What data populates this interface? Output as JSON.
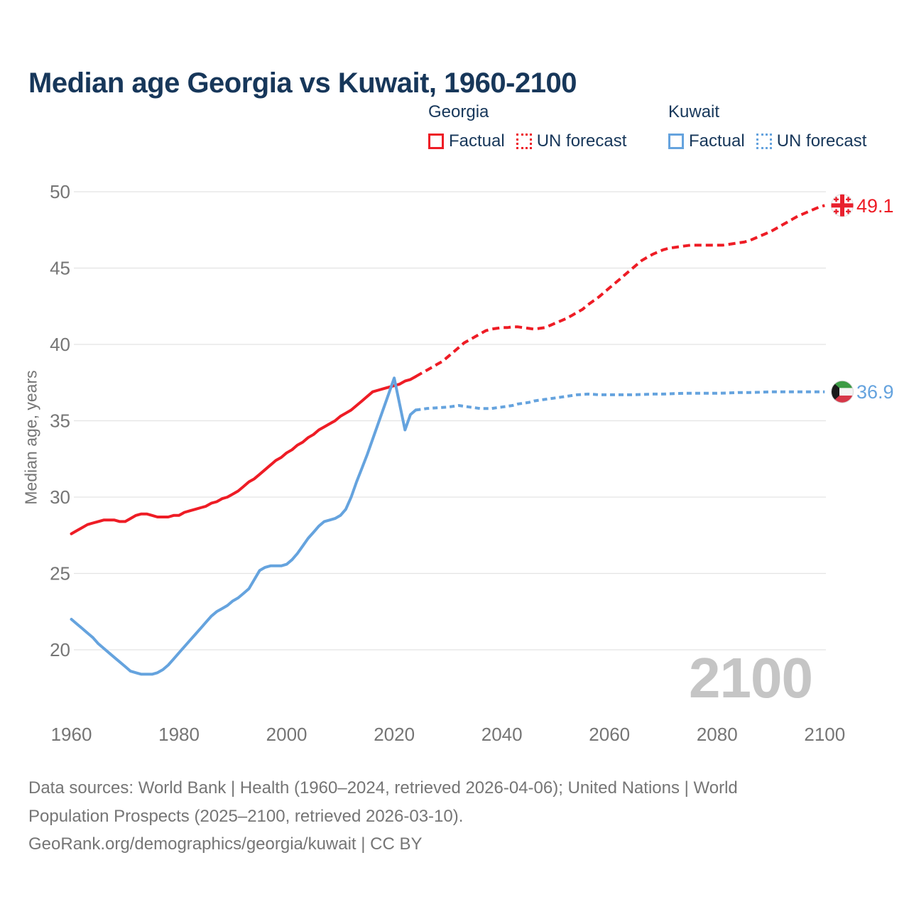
{
  "title": "Median age Georgia vs Kuwait, 1960-2100",
  "y_axis_title": "Median age, years",
  "watermark": "2100",
  "legend": {
    "groups": [
      {
        "name": "Georgia",
        "items": [
          {
            "label": "Factual",
            "style": "solid"
          },
          {
            "label": "UN forecast",
            "style": "dotted"
          }
        ]
      },
      {
        "name": "Kuwait",
        "items": [
          {
            "label": "Factual",
            "style": "solid"
          },
          {
            "label": "UN forecast",
            "style": "dotted"
          }
        ]
      }
    ]
  },
  "end_labels": {
    "georgia": "49.1",
    "kuwait": "36.9"
  },
  "footer": {
    "lines": [
      "Data sources: World Bank | Health (1960–2024, retrieved 2026-04-06); United Nations | World",
      "Population Prospects (2025–2100, retrieved 2026-03-10).",
      "GeoRank.org/demographics/georgia/kuwait | CC BY"
    ]
  },
  "colors": {
    "georgia": "#ee1c25",
    "kuwait": "#65a3de",
    "title_text": "#17375a",
    "axis_text": "#757575",
    "grid": "#e3e3e3",
    "watermark": "#c5c5c5",
    "footer_text": "#757575",
    "flag_georgia_red": "#e8212e",
    "flag_kuwait_green": "#3d9b45",
    "flag_kuwait_red": "#d63748",
    "flag_kuwait_black": "#1a1a1a"
  },
  "chart_data": {
    "type": "line",
    "title": "Median age Georgia vs Kuwait, 1960-2100",
    "xlabel": "",
    "ylabel": "Median age, years",
    "xlim": [
      1960,
      2100
    ],
    "ylim": [
      20,
      50
    ],
    "x_ticks": [
      1960,
      1980,
      2000,
      2020,
      2040,
      2060,
      2080,
      2100
    ],
    "y_ticks": [
      20,
      25,
      30,
      35,
      40,
      45,
      50
    ],
    "grid": "horizontal",
    "legend_position": "top",
    "series": [
      {
        "name": "Georgia Factual",
        "country": "Georgia",
        "style": "solid",
        "color": "#ee1c25",
        "points": [
          [
            1960,
            27.6
          ],
          [
            1961,
            27.8
          ],
          [
            1962,
            28.0
          ],
          [
            1963,
            28.2
          ],
          [
            1964,
            28.3
          ],
          [
            1965,
            28.4
          ],
          [
            1966,
            28.5
          ],
          [
            1967,
            28.5
          ],
          [
            1968,
            28.5
          ],
          [
            1969,
            28.4
          ],
          [
            1970,
            28.4
          ],
          [
            1971,
            28.6
          ],
          [
            1972,
            28.8
          ],
          [
            1973,
            28.9
          ],
          [
            1974,
            28.9
          ],
          [
            1975,
            28.8
          ],
          [
            1976,
            28.7
          ],
          [
            1977,
            28.7
          ],
          [
            1978,
            28.7
          ],
          [
            1979,
            28.8
          ],
          [
            1980,
            28.8
          ],
          [
            1981,
            29.0
          ],
          [
            1982,
            29.1
          ],
          [
            1983,
            29.2
          ],
          [
            1984,
            29.3
          ],
          [
            1985,
            29.4
          ],
          [
            1986,
            29.6
          ],
          [
            1987,
            29.7
          ],
          [
            1988,
            29.9
          ],
          [
            1989,
            30.0
          ],
          [
            1990,
            30.2
          ],
          [
            1991,
            30.4
          ],
          [
            1992,
            30.7
          ],
          [
            1993,
            31.0
          ],
          [
            1994,
            31.2
          ],
          [
            1995,
            31.5
          ],
          [
            1996,
            31.8
          ],
          [
            1997,
            32.1
          ],
          [
            1998,
            32.4
          ],
          [
            1999,
            32.6
          ],
          [
            2000,
            32.9
          ],
          [
            2001,
            33.1
          ],
          [
            2002,
            33.4
          ],
          [
            2003,
            33.6
          ],
          [
            2004,
            33.9
          ],
          [
            2005,
            34.1
          ],
          [
            2006,
            34.4
          ],
          [
            2007,
            34.6
          ],
          [
            2008,
            34.8
          ],
          [
            2009,
            35.0
          ],
          [
            2010,
            35.3
          ],
          [
            2011,
            35.5
          ],
          [
            2012,
            35.7
          ],
          [
            2013,
            36.0
          ],
          [
            2014,
            36.3
          ],
          [
            2015,
            36.6
          ],
          [
            2016,
            36.9
          ],
          [
            2017,
            37.0
          ],
          [
            2018,
            37.1
          ],
          [
            2019,
            37.2
          ],
          [
            2020,
            37.3
          ],
          [
            2021,
            37.4
          ],
          [
            2022,
            37.6
          ],
          [
            2023,
            37.7
          ],
          [
            2024,
            37.9
          ]
        ]
      },
      {
        "name": "Georgia UN forecast",
        "country": "Georgia",
        "style": "dashed",
        "color": "#ee1c25",
        "points": [
          [
            2024,
            37.9
          ],
          [
            2025,
            38.1
          ],
          [
            2026,
            38.3
          ],
          [
            2027,
            38.5
          ],
          [
            2028,
            38.7
          ],
          [
            2029,
            38.9
          ],
          [
            2030,
            39.2
          ],
          [
            2031,
            39.5
          ],
          [
            2032,
            39.8
          ],
          [
            2033,
            40.1
          ],
          [
            2034,
            40.3
          ],
          [
            2035,
            40.5
          ],
          [
            2036,
            40.7
          ],
          [
            2037,
            40.9
          ],
          [
            2038,
            41.0
          ],
          [
            2039,
            41.05
          ],
          [
            2040,
            41.1
          ],
          [
            2041,
            41.1
          ],
          [
            2042,
            41.15
          ],
          [
            2043,
            41.15
          ],
          [
            2044,
            41.1
          ],
          [
            2045,
            41.05
          ],
          [
            2046,
            41.0
          ],
          [
            2047,
            41.05
          ],
          [
            2048,
            41.1
          ],
          [
            2049,
            41.25
          ],
          [
            2050,
            41.4
          ],
          [
            2051,
            41.55
          ],
          [
            2052,
            41.7
          ],
          [
            2053,
            41.9
          ],
          [
            2054,
            42.1
          ],
          [
            2055,
            42.3
          ],
          [
            2056,
            42.6
          ],
          [
            2057,
            42.85
          ],
          [
            2058,
            43.1
          ],
          [
            2059,
            43.4
          ],
          [
            2060,
            43.7
          ],
          [
            2061,
            44.0
          ],
          [
            2062,
            44.3
          ],
          [
            2063,
            44.6
          ],
          [
            2064,
            44.9
          ],
          [
            2065,
            45.2
          ],
          [
            2066,
            45.5
          ],
          [
            2067,
            45.7
          ],
          [
            2068,
            45.9
          ],
          [
            2069,
            46.05
          ],
          [
            2070,
            46.2
          ],
          [
            2071,
            46.3
          ],
          [
            2072,
            46.35
          ],
          [
            2073,
            46.4
          ],
          [
            2074,
            46.45
          ],
          [
            2075,
            46.5
          ],
          [
            2076,
            46.5
          ],
          [
            2077,
            46.5
          ],
          [
            2078,
            46.5
          ],
          [
            2079,
            46.5
          ],
          [
            2080,
            46.5
          ],
          [
            2081,
            46.5
          ],
          [
            2082,
            46.55
          ],
          [
            2083,
            46.6
          ],
          [
            2084,
            46.65
          ],
          [
            2085,
            46.7
          ],
          [
            2086,
            46.8
          ],
          [
            2087,
            46.95
          ],
          [
            2088,
            47.1
          ],
          [
            2089,
            47.25
          ],
          [
            2090,
            47.4
          ],
          [
            2091,
            47.6
          ],
          [
            2092,
            47.8
          ],
          [
            2093,
            48.0
          ],
          [
            2094,
            48.2
          ],
          [
            2095,
            48.4
          ],
          [
            2096,
            48.55
          ],
          [
            2097,
            48.7
          ],
          [
            2098,
            48.85
          ],
          [
            2099,
            49.0
          ],
          [
            2100,
            49.1
          ]
        ]
      },
      {
        "name": "Kuwait Factual",
        "country": "Kuwait",
        "style": "solid",
        "color": "#65a3de",
        "points": [
          [
            1960,
            22.0
          ],
          [
            1961,
            21.7
          ],
          [
            1962,
            21.4
          ],
          [
            1963,
            21.1
          ],
          [
            1964,
            20.8
          ],
          [
            1965,
            20.4
          ],
          [
            1966,
            20.1
          ],
          [
            1967,
            19.8
          ],
          [
            1968,
            19.5
          ],
          [
            1969,
            19.2
          ],
          [
            1970,
            18.9
          ],
          [
            1971,
            18.6
          ],
          [
            1972,
            18.5
          ],
          [
            1973,
            18.4
          ],
          [
            1974,
            18.4
          ],
          [
            1975,
            18.4
          ],
          [
            1976,
            18.5
          ],
          [
            1977,
            18.7
          ],
          [
            1978,
            19.0
          ],
          [
            1979,
            19.4
          ],
          [
            1980,
            19.8
          ],
          [
            1981,
            20.2
          ],
          [
            1982,
            20.6
          ],
          [
            1983,
            21.0
          ],
          [
            1984,
            21.4
          ],
          [
            1985,
            21.8
          ],
          [
            1986,
            22.2
          ],
          [
            1987,
            22.5
          ],
          [
            1988,
            22.7
          ],
          [
            1989,
            22.9
          ],
          [
            1990,
            23.2
          ],
          [
            1991,
            23.4
          ],
          [
            1992,
            23.7
          ],
          [
            1993,
            24.0
          ],
          [
            1994,
            24.6
          ],
          [
            1995,
            25.2
          ],
          [
            1996,
            25.4
          ],
          [
            1997,
            25.5
          ],
          [
            1998,
            25.5
          ],
          [
            1999,
            25.5
          ],
          [
            2000,
            25.6
          ],
          [
            2001,
            25.9
          ],
          [
            2002,
            26.3
          ],
          [
            2003,
            26.8
          ],
          [
            2004,
            27.3
          ],
          [
            2005,
            27.7
          ],
          [
            2006,
            28.1
          ],
          [
            2007,
            28.4
          ],
          [
            2008,
            28.5
          ],
          [
            2009,
            28.6
          ],
          [
            2010,
            28.8
          ],
          [
            2011,
            29.2
          ],
          [
            2012,
            30.0
          ],
          [
            2013,
            31.0
          ],
          [
            2014,
            31.9
          ],
          [
            2015,
            32.8
          ],
          [
            2016,
            33.8
          ],
          [
            2017,
            34.8
          ],
          [
            2018,
            35.8
          ],
          [
            2019,
            36.8
          ],
          [
            2020,
            37.8
          ],
          [
            2021,
            36.1
          ],
          [
            2022,
            34.4
          ],
          [
            2023,
            35.4
          ],
          [
            2024,
            35.7
          ]
        ]
      },
      {
        "name": "Kuwait UN forecast",
        "country": "Kuwait",
        "style": "dashed",
        "color": "#65a3de",
        "points": [
          [
            2024,
            35.7
          ],
          [
            2025,
            35.75
          ],
          [
            2026,
            35.8
          ],
          [
            2028,
            35.85
          ],
          [
            2030,
            35.9
          ],
          [
            2031,
            35.95
          ],
          [
            2032,
            36.0
          ],
          [
            2033,
            35.95
          ],
          [
            2034,
            35.9
          ],
          [
            2035,
            35.85
          ],
          [
            2036,
            35.8
          ],
          [
            2037,
            35.8
          ],
          [
            2038,
            35.8
          ],
          [
            2039,
            35.85
          ],
          [
            2040,
            35.9
          ],
          [
            2041,
            35.95
          ],
          [
            2042,
            36.0
          ],
          [
            2043,
            36.1
          ],
          [
            2044,
            36.15
          ],
          [
            2045,
            36.2
          ],
          [
            2046,
            36.3
          ],
          [
            2047,
            36.35
          ],
          [
            2048,
            36.4
          ],
          [
            2049,
            36.45
          ],
          [
            2050,
            36.5
          ],
          [
            2051,
            36.55
          ],
          [
            2052,
            36.6
          ],
          [
            2053,
            36.65
          ],
          [
            2054,
            36.7
          ],
          [
            2055,
            36.72
          ],
          [
            2056,
            36.75
          ],
          [
            2057,
            36.73
          ],
          [
            2058,
            36.7
          ],
          [
            2060,
            36.7
          ],
          [
            2062,
            36.7
          ],
          [
            2064,
            36.7
          ],
          [
            2066,
            36.72
          ],
          [
            2068,
            36.75
          ],
          [
            2070,
            36.75
          ],
          [
            2072,
            36.78
          ],
          [
            2074,
            36.8
          ],
          [
            2076,
            36.8
          ],
          [
            2078,
            36.8
          ],
          [
            2080,
            36.8
          ],
          [
            2082,
            36.82
          ],
          [
            2084,
            36.85
          ],
          [
            2086,
            36.85
          ],
          [
            2088,
            36.87
          ],
          [
            2090,
            36.9
          ],
          [
            2092,
            36.9
          ],
          [
            2094,
            36.9
          ],
          [
            2096,
            36.9
          ],
          [
            2098,
            36.9
          ],
          [
            2100,
            36.9
          ]
        ]
      }
    ]
  }
}
